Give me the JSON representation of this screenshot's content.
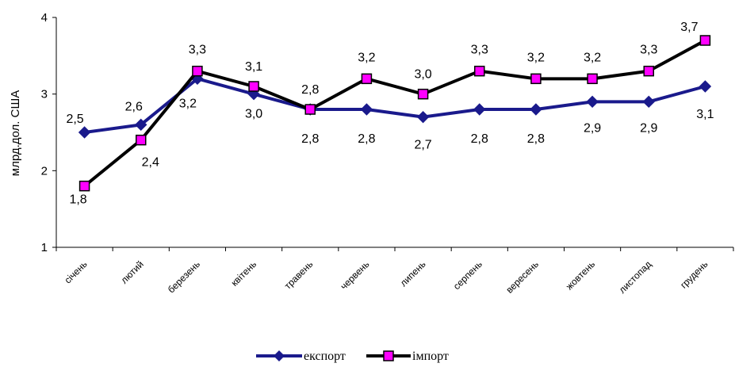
{
  "chart_data": {
    "type": "line",
    "ylabel": "млрд.дол. США",
    "xlabel": "",
    "ylim": [
      1,
      4
    ],
    "yticks": [
      "1",
      "2",
      "3",
      "4"
    ],
    "categories": [
      "січень",
      "лютий",
      "березень",
      "квітень",
      "травень",
      "червень",
      "липень",
      "серпень",
      "вересень",
      "жовтень",
      "листопад",
      "грудень"
    ],
    "series": [
      {
        "name": "експорт",
        "color": "#1a1a8c",
        "marker": "diamond",
        "values": [
          2.5,
          2.6,
          3.2,
          3.0,
          2.8,
          2.8,
          2.7,
          2.8,
          2.8,
          2.9,
          2.9,
          3.1
        ],
        "labels": [
          "2,5",
          "2,6",
          "3,2",
          "3,0",
          "2,8",
          "2,8",
          "2,7",
          "2,8",
          "2,8",
          "2,9",
          "2,9",
          "3,1"
        ]
      },
      {
        "name": "імпорт",
        "color": "#000000",
        "marker_fill": "#ff00ff",
        "marker": "square",
        "values": [
          1.8,
          2.4,
          3.3,
          3.1,
          2.8,
          3.2,
          3.0,
          3.3,
          3.2,
          3.2,
          3.3,
          3.7
        ],
        "labels": [
          "1,8",
          "2,4",
          "3,3",
          "3,1",
          "2,8",
          "3,2",
          "3,0",
          "3,3",
          "3,2",
          "3,2",
          "3,3",
          "3,7"
        ]
      }
    ],
    "legend_position": "bottom",
    "grid": false
  }
}
